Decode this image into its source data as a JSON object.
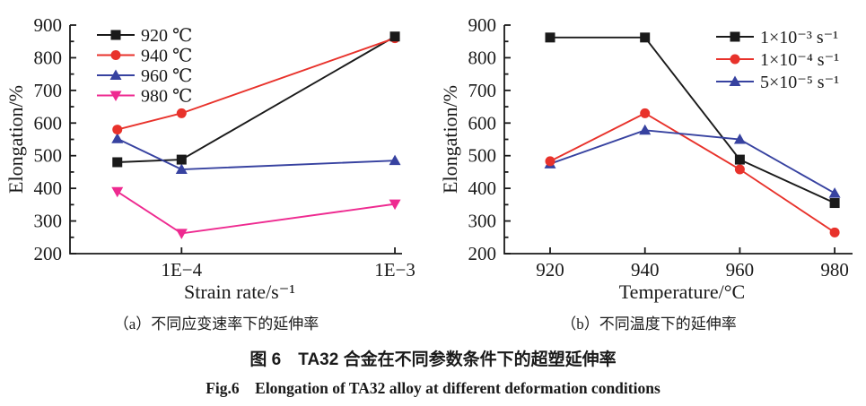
{
  "figure": {
    "caption_cn": "图 6　TA32 合金在不同参数条件下的超塑延伸率",
    "caption_en": "Fig.6　Elongation of TA32 alloy at different deformation conditions"
  },
  "colors": {
    "black": "#1a1a1a",
    "red": "#e8322b",
    "blue": "#3742a0",
    "magenta": "#ee2a90"
  },
  "chart_data": [
    {
      "id": "a",
      "type": "line",
      "subcaption": "（a）不同应变速率下的延伸率",
      "xlabel": "Strain rate/s⁻¹",
      "ylabel": "Elongation/%",
      "x_scale": "log",
      "x": [
        5e-05,
        0.0001,
        0.001
      ],
      "xlim": [
        3e-05,
        0.00108
      ],
      "x_ticks": [
        {
          "value": 0.0001,
          "label": "1E−4"
        },
        {
          "value": 0.001,
          "label": "1E−3"
        }
      ],
      "ylim": [
        200,
        900
      ],
      "y_ticks": [
        200,
        300,
        400,
        500,
        600,
        700,
        800,
        900
      ],
      "y_minor_step": 50,
      "grid": false,
      "legend_position": "top-left",
      "series": [
        {
          "name": "920 ℃",
          "marker": "square",
          "color": "#1a1a1a",
          "values": [
            480,
            488,
            865
          ]
        },
        {
          "name": "940 ℃",
          "marker": "circle",
          "color": "#e8322b",
          "values": [
            580,
            630,
            860
          ]
        },
        {
          "name": "960 ℃",
          "marker": "triangle-up",
          "color": "#3742a0",
          "values": [
            552,
            458,
            485
          ]
        },
        {
          "name": "980 ℃",
          "marker": "triangle-down",
          "color": "#ee2a90",
          "values": [
            390,
            262,
            352
          ]
        }
      ]
    },
    {
      "id": "b",
      "type": "line",
      "subcaption": "（b）不同温度下的延伸率",
      "xlabel": "Temperature/°C",
      "ylabel": "Elongation/%",
      "x_scale": "category",
      "categories": [
        "920",
        "940",
        "960",
        "980"
      ],
      "ylim": [
        200,
        900
      ],
      "y_ticks": [
        200,
        300,
        400,
        500,
        600,
        700,
        800,
        900
      ],
      "y_minor_step": 50,
      "grid": false,
      "legend_position": "top-right",
      "series": [
        {
          "name": "1×10⁻³ s⁻¹",
          "marker": "square",
          "color": "#1a1a1a",
          "values": [
            862,
            862,
            488,
            355
          ]
        },
        {
          "name": "1×10⁻⁴ s⁻¹",
          "marker": "circle",
          "color": "#e8322b",
          "values": [
            483,
            630,
            458,
            265
          ]
        },
        {
          "name": "5×10⁻⁵ s⁻¹",
          "marker": "triangle-up",
          "color": "#3742a0",
          "values": [
            475,
            578,
            550,
            385
          ]
        }
      ]
    }
  ]
}
